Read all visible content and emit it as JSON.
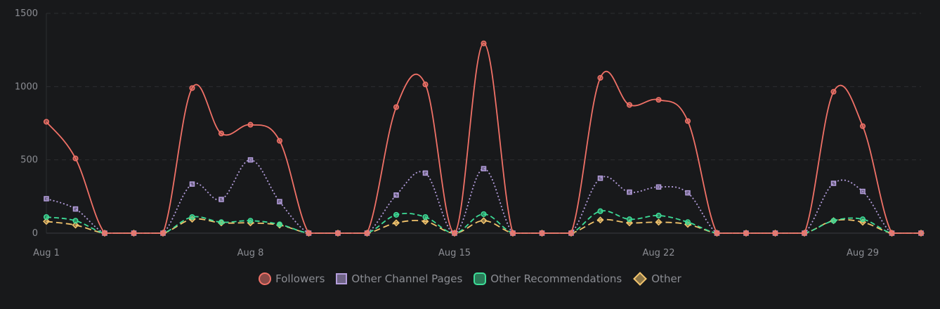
{
  "chart_data": {
    "type": "line",
    "ylim": [
      0,
      1500
    ],
    "y_ticks": [
      "0",
      "500",
      "1000",
      "1500"
    ],
    "x_ticks": [
      {
        "day": 1,
        "label": "Aug 1"
      },
      {
        "day": 8,
        "label": "Aug 8"
      },
      {
        "day": 15,
        "label": "Aug 15"
      },
      {
        "day": 22,
        "label": "Aug 22"
      },
      {
        "day": 29,
        "label": "Aug 29"
      }
    ],
    "x": [
      1,
      2,
      3,
      4,
      5,
      6,
      7,
      8,
      9,
      10,
      11,
      12,
      13,
      14,
      15,
      16,
      17,
      18,
      19,
      20,
      21,
      22,
      23,
      24,
      25,
      26,
      27,
      28,
      29,
      30,
      31
    ],
    "grid": true,
    "legend_position": "bottom",
    "series": [
      {
        "name": "Followers",
        "color": "#f07167",
        "dash": "",
        "marker": "circle",
        "values": [
          760,
          510,
          0,
          0,
          0,
          990,
          680,
          740,
          630,
          0,
          0,
          0,
          860,
          1015,
          0,
          1295,
          0,
          0,
          0,
          1060,
          875,
          910,
          765,
          0,
          0,
          0,
          0,
          965,
          730,
          0,
          0
        ]
      },
      {
        "name": "Other Channel Pages",
        "color": "#b39ddb",
        "dash": "2,3",
        "marker": "square",
        "values": [
          235,
          165,
          0,
          0,
          0,
          335,
          230,
          500,
          215,
          0,
          0,
          0,
          260,
          410,
          0,
          440,
          0,
          0,
          0,
          375,
          280,
          315,
          275,
          0,
          0,
          0,
          0,
          340,
          285,
          0,
          0
        ]
      },
      {
        "name": "Other Recommendations",
        "color": "#3ddc97",
        "dash": "7,4",
        "marker": "circle",
        "values": [
          110,
          85,
          0,
          0,
          0,
          110,
          75,
          85,
          60,
          0,
          0,
          0,
          125,
          110,
          0,
          130,
          0,
          0,
          0,
          150,
          95,
          120,
          75,
          0,
          0,
          0,
          0,
          85,
          95,
          0,
          0
        ]
      },
      {
        "name": "Other",
        "color": "#f2c46d",
        "dash": "9,5",
        "marker": "diamond",
        "values": [
          80,
          55,
          0,
          0,
          0,
          95,
          70,
          70,
          55,
          0,
          0,
          0,
          70,
          80,
          0,
          85,
          0,
          0,
          0,
          90,
          70,
          75,
          60,
          0,
          0,
          0,
          0,
          85,
          75,
          0,
          0
        ]
      }
    ]
  }
}
